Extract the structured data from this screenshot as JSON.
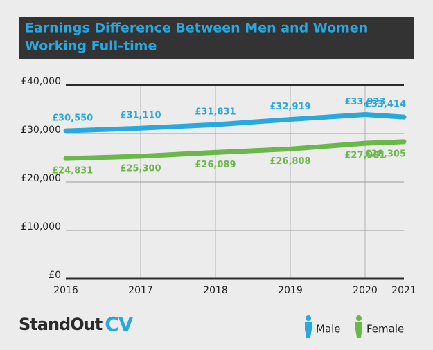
{
  "chart_data": {
    "type": "line",
    "title": [
      "Earnings Difference Between Men and Women",
      "Working Full-time"
    ],
    "categories": [
      "2016",
      "2017",
      "2018",
      "2019",
      "2020",
      "2021"
    ],
    "series": [
      {
        "name": "Male",
        "color": "#29a8e0",
        "values": [
          30550,
          31110,
          31831,
          32919,
          33923,
          33414
        ],
        "value_labels": [
          "£30,550",
          "£31,110",
          "£31,831",
          "£32,919",
          "£33,923",
          "£33,414"
        ]
      },
      {
        "name": "Female",
        "color": "#6ab84a",
        "values": [
          24831,
          25300,
          26089,
          26808,
          27981,
          28305
        ],
        "value_labels": [
          "£24,831",
          "£25,300",
          "£26,089",
          "£26,808",
          "£27,981",
          "£28,305"
        ]
      }
    ],
    "ylim": [
      0,
      40000
    ],
    "yticks": [
      {
        "value": 0,
        "label": "£0"
      },
      {
        "value": 10000,
        "label": "£10,000"
      },
      {
        "value": 20000,
        "label": "£20,000"
      },
      {
        "value": 30000,
        "label": "£30,000"
      },
      {
        "value": 40000,
        "label": "£40,000"
      }
    ],
    "grid": true,
    "brand": [
      "StandOut",
      "CV"
    ]
  }
}
